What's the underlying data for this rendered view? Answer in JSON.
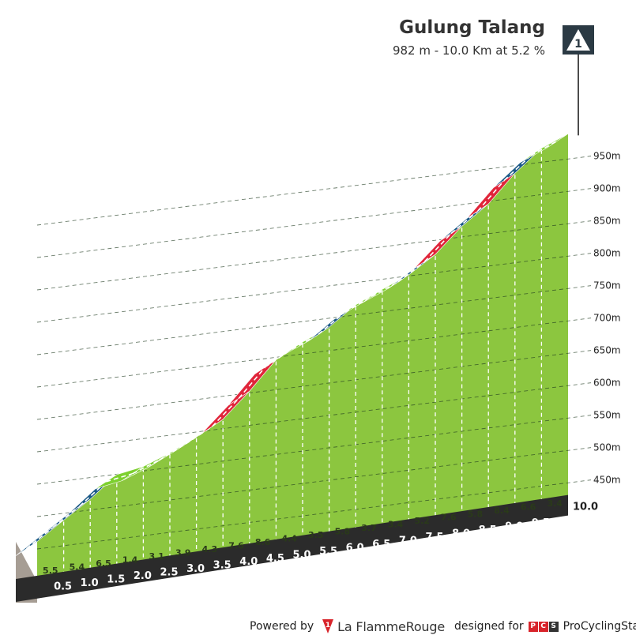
{
  "header": {
    "title": "Gulung Talang",
    "subtitle": "982 m - 10.0 Km at 5.2 %",
    "finish_marker": "1"
  },
  "footer": {
    "powered_by": "Powered by",
    "brand_la": "La Flamme",
    "brand_rouge": "Rouge",
    "designed_for": "designed for",
    "pcs_letters": [
      "P",
      "C",
      "S"
    ],
    "pcs_name": "ProCyclingStats"
  },
  "colors": {
    "fill": "#8cc63f",
    "road_easy": "#7dd02f",
    "road_moderate": "#1c5a87",
    "road_hard": "#e0253a",
    "base_dark": "#2b2b2b",
    "base_side": "#a69d94",
    "finish_box": "#2b3a44"
  },
  "chart_data": {
    "type": "area",
    "title": "Gulung Talang",
    "subtitle": "982 m - 10.0 Km at 5.2 %",
    "x_unit": "km",
    "y_unit": "m",
    "ylim": [
      400,
      982
    ],
    "km_marks": [
      "0.5",
      "1.0",
      "1.5",
      "2.0",
      "2.5",
      "3.0",
      "3.5",
      "4.0",
      "4.5",
      "5.0",
      "5.5",
      "6.0",
      "6.5",
      "7.0",
      "7.5",
      "8.0",
      "8.5",
      "9.0",
      "9.5",
      "10.0"
    ],
    "gradients": [
      "5.5",
      "5.4",
      "6.5",
      "1.4",
      "3.1",
      "3.9",
      "4.3",
      "7.6",
      "8.6",
      "4.4",
      "3.5",
      "5.8",
      "3.7",
      "3.4",
      "5.2",
      "7.6",
      "5.8",
      "8.4",
      "6.6",
      "3.4"
    ],
    "altitude_ticks": [
      "450m",
      "500m",
      "550m",
      "600m",
      "650m",
      "700m",
      "750m",
      "800m",
      "850m",
      "900m",
      "950m"
    ],
    "altitude_tick_values": [
      450,
      500,
      550,
      600,
      650,
      700,
      750,
      800,
      850,
      900,
      950
    ],
    "grid": true,
    "legend": "none"
  }
}
